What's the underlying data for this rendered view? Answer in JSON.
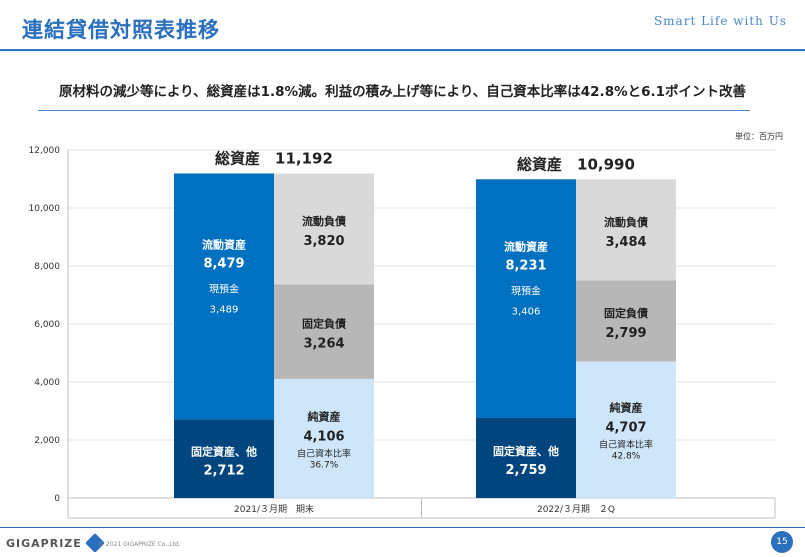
{
  "header": {
    "title": "連結貸借対照表推移",
    "brand": "Smart Life with Us"
  },
  "subtitle": "原材料の減少等により、総資産は1.8%減。利益の積み上げ等により、自己資本比率は42.8%と6.1ポイント改善",
  "unit_label": "単位：百万円",
  "footer": {
    "logo_text": "GIGAPRIZE",
    "copyright": "© 2021 GIGAPRIZE Co.,Ltd.",
    "page_number": "15"
  },
  "colors": {
    "current_assets": "#0070c0",
    "fixed_assets": "#00457e",
    "current_liabilities": "#d9d9d9",
    "fixed_liabilities": "#b7b7b7",
    "net_assets": "#cfe6fa",
    "white_text": "#ffffff",
    "dark_text": "#222222"
  },
  "chart_data": {
    "type": "bar",
    "stacked": true,
    "ylim": [
      0,
      12000
    ],
    "yticks": [
      "0",
      "2,000",
      "4,000",
      "6,000",
      "8,000",
      "10,000",
      "12,000"
    ],
    "categories": [
      "2021/３月期　期末",
      "2022/３月期　２Q"
    ],
    "totals": [
      {
        "label": "総資産",
        "value": "11,192",
        "raw": 11192
      },
      {
        "label": "総資産",
        "value": "10,990",
        "raw": 10990
      }
    ],
    "assets": [
      {
        "name": "固定資産、他",
        "values": [
          2712,
          2759
        ],
        "labels": [
          "2,712",
          "2,759"
        ]
      },
      {
        "name": "流動資産",
        "values": [
          8479,
          8231
        ],
        "labels": [
          "8,479",
          "8,231"
        ],
        "sub_name": "現預金",
        "sub_values": [
          "3,489",
          "3,406"
        ]
      }
    ],
    "liabilities": [
      {
        "name": "純資産",
        "values": [
          4106,
          4707
        ],
        "labels": [
          "4,106",
          "4,707"
        ],
        "sub_name": "自己資本比率",
        "sub_values": [
          "36.7%",
          "42.8%"
        ]
      },
      {
        "name": "固定負債",
        "values": [
          3264,
          2799
        ],
        "labels": [
          "3,264",
          "2,799"
        ]
      },
      {
        "name": "流動負債",
        "values": [
          3820,
          3484
        ],
        "labels": [
          "3,820",
          "3,484"
        ]
      }
    ]
  }
}
